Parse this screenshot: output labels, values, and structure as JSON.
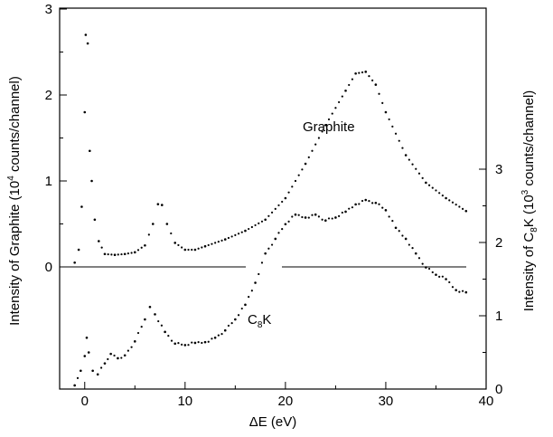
{
  "chart_data": {
    "type": "scatter",
    "xlabel": "ΔE (eV)",
    "ylabel_left": {
      "pre": "Intensity of Graphite (10",
      "sup": "4",
      "post": " counts/channel)"
    },
    "ylabel_right": {
      "pre": "Intensity of C",
      "sub": "8",
      "mid": "K (10",
      "sup": "3",
      "post": " counts/channel)"
    },
    "xlim": [
      -2.5,
      40
    ],
    "x_ticks": [
      "0",
      "10",
      "20",
      "30",
      "40"
    ],
    "ylim_left": [
      0,
      3
    ],
    "left_ticks": [
      "0",
      "1",
      "2",
      "3"
    ],
    "right_ticks": [
      "0",
      "1",
      "2",
      "3"
    ],
    "right_tick_values": [
      0,
      1,
      2,
      3
    ],
    "grid": false,
    "series": [
      {
        "name": "Graphite",
        "label_parts": {
          "main": "Graphite"
        },
        "axis": "left",
        "points": [
          [
            -1,
            0.05
          ],
          [
            -0.6,
            0.2
          ],
          [
            -0.3,
            0.7
          ],
          [
            0,
            1.8
          ],
          [
            0.1,
            2.7
          ],
          [
            0.3,
            2.6
          ],
          [
            0.5,
            1.35
          ],
          [
            0.7,
            1.0
          ],
          [
            1.0,
            0.55
          ],
          [
            1.4,
            0.3
          ],
          [
            2,
            0.15
          ],
          [
            3,
            0.14
          ],
          [
            4,
            0.15
          ],
          [
            5,
            0.17
          ],
          [
            6,
            0.25
          ],
          [
            6.8,
            0.5
          ],
          [
            7.3,
            0.73
          ],
          [
            7.7,
            0.72
          ],
          [
            8.2,
            0.5
          ],
          [
            9,
            0.28
          ],
          [
            10,
            0.2
          ],
          [
            11,
            0.2
          ],
          [
            12,
            0.24
          ],
          [
            14,
            0.32
          ],
          [
            16,
            0.42
          ],
          [
            18,
            0.55
          ],
          [
            20,
            0.8
          ],
          [
            22,
            1.2
          ],
          [
            24,
            1.65
          ],
          [
            26,
            2.05
          ],
          [
            27,
            2.25
          ],
          [
            28,
            2.27
          ],
          [
            29,
            2.12
          ],
          [
            30,
            1.8
          ],
          [
            32,
            1.3
          ],
          [
            34,
            0.98
          ],
          [
            36,
            0.8
          ],
          [
            38,
            0.65
          ]
        ]
      },
      {
        "name": "C8K",
        "label_parts": {
          "pre": "C",
          "sub": "8",
          "post": "K"
        },
        "axis": "right",
        "points": [
          [
            -1,
            0.05
          ],
          [
            -0.4,
            0.25
          ],
          [
            0,
            0.45
          ],
          [
            0.2,
            0.7
          ],
          [
            0.4,
            0.5
          ],
          [
            0.8,
            0.25
          ],
          [
            1.3,
            0.2
          ],
          [
            2,
            0.35
          ],
          [
            2.6,
            0.48
          ],
          [
            3.3,
            0.42
          ],
          [
            4,
            0.46
          ],
          [
            5,
            0.65
          ],
          [
            6,
            0.95
          ],
          [
            6.5,
            1.12
          ],
          [
            7,
            1.02
          ],
          [
            8,
            0.78
          ],
          [
            9,
            0.62
          ],
          [
            10,
            0.6
          ],
          [
            11,
            0.63
          ],
          [
            12,
            0.64
          ],
          [
            13,
            0.7
          ],
          [
            14,
            0.8
          ],
          [
            15,
            0.95
          ],
          [
            16,
            1.15
          ],
          [
            17,
            1.45
          ],
          [
            18,
            1.85
          ],
          [
            19,
            2.05
          ],
          [
            20,
            2.25
          ],
          [
            21,
            2.38
          ],
          [
            22,
            2.34
          ],
          [
            23,
            2.38
          ],
          [
            24,
            2.3
          ],
          [
            25,
            2.34
          ],
          [
            26,
            2.42
          ],
          [
            27,
            2.52
          ],
          [
            28,
            2.58
          ],
          [
            29,
            2.54
          ],
          [
            30,
            2.44
          ],
          [
            31,
            2.2
          ],
          [
            32,
            2.05
          ],
          [
            33,
            1.85
          ],
          [
            34,
            1.66
          ],
          [
            35,
            1.56
          ],
          [
            36,
            1.5
          ],
          [
            37,
            1.35
          ],
          [
            38,
            1.32
          ]
        ]
      }
    ]
  }
}
